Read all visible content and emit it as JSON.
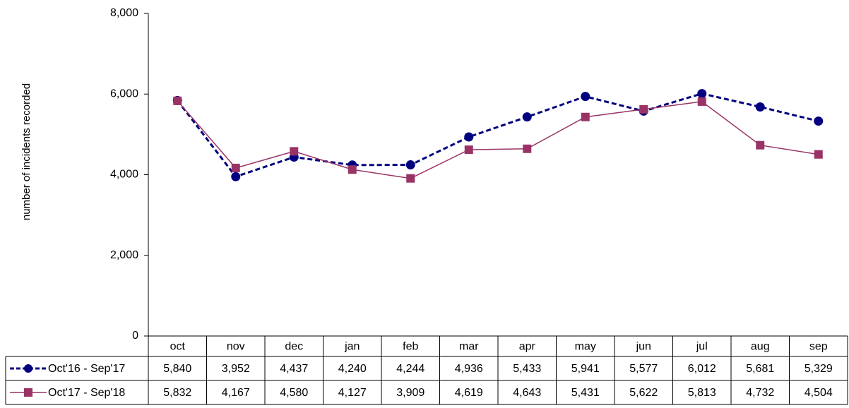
{
  "chart_data": {
    "type": "line",
    "y_label": "number of incidents recorded",
    "categories": [
      "oct",
      "nov",
      "dec",
      "jan",
      "feb",
      "mar",
      "apr",
      "may",
      "jun",
      "jul",
      "aug",
      "sep"
    ],
    "series": [
      {
        "name": "Oct'16 - Sep'17",
        "color": "#000080",
        "dashed": true,
        "marker": "circle",
        "values": [
          5840,
          3952,
          4437,
          4240,
          4244,
          4936,
          5433,
          5941,
          5577,
          6012,
          5681,
          5329
        ],
        "value_labels": [
          "5,840",
          "3,952",
          "4,437",
          "4,240",
          "4,244",
          "4,936",
          "5,433",
          "5,941",
          "5,577",
          "6,012",
          "5,681",
          "5,329"
        ]
      },
      {
        "name": "Oct'17 - Sep'18",
        "color": "#993366",
        "dashed": false,
        "marker": "square",
        "values": [
          5832,
          4167,
          4580,
          4127,
          3909,
          4619,
          4643,
          5431,
          5622,
          5813,
          4732,
          4504
        ],
        "value_labels": [
          "5,832",
          "4,167",
          "4,580",
          "4,127",
          "3,909",
          "4,619",
          "4,643",
          "5,431",
          "5,622",
          "5,813",
          "4,732",
          "4,504"
        ]
      }
    ],
    "ylim": [
      0,
      8000
    ],
    "yticks": [
      0,
      {
        "value": 2000,
        "label": "2,000"
      },
      {
        "value": 4000,
        "label": "4,000"
      },
      {
        "value": 6000,
        "label": "6,000"
      },
      {
        "value": 8000,
        "label": "8,000"
      }
    ],
    "grid": false
  }
}
